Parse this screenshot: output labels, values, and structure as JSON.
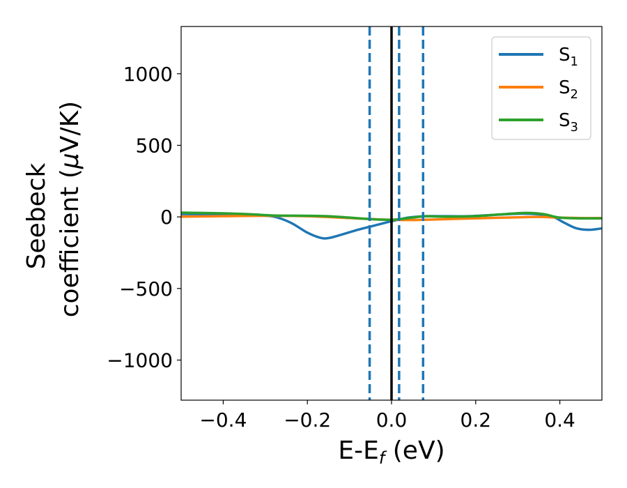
{
  "chart_data": {
    "type": "line",
    "xlabel_main": "E-E",
    "xlabel_sub": "f",
    "xlabel_unit": " (eV)",
    "ylabel_line1": "Seebeck",
    "ylabel_line2_pre": "coefficient  (",
    "ylabel_line2_mu": "μ",
    "ylabel_line2_post": "V/K)",
    "xlim": [
      -0.5,
      0.5
    ],
    "ylim": [
      -1280,
      1330
    ],
    "xticks": [
      {
        "value": -0.4,
        "label": "−0.4"
      },
      {
        "value": -0.2,
        "label": "−0.2"
      },
      {
        "value": 0.0,
        "label": "0.0"
      },
      {
        "value": 0.2,
        "label": "0.2"
      },
      {
        "value": 0.4,
        "label": "0.4"
      }
    ],
    "yticks": [
      {
        "value": 1000,
        "label": "1000"
      },
      {
        "value": 500,
        "label": "500"
      },
      {
        "value": 0,
        "label": "0"
      },
      {
        "value": -500,
        "label": "−500"
      },
      {
        "value": -1000,
        "label": "−1000"
      }
    ],
    "grid": false,
    "legend_position": "top-right",
    "series": [
      {
        "name": "S",
        "name_sub": "1",
        "color": "#1f77b4",
        "x": [
          -0.5,
          -0.4,
          -0.33,
          -0.28,
          -0.24,
          -0.2,
          -0.17,
          -0.15,
          -0.12,
          -0.08,
          -0.04,
          0.0,
          0.04,
          0.08,
          0.12,
          0.18,
          0.25,
          0.3,
          0.34,
          0.38,
          0.41,
          0.44,
          0.47,
          0.5
        ],
        "y": [
          20,
          18,
          12,
          2,
          -40,
          -110,
          -145,
          -148,
          -125,
          -90,
          -60,
          -30,
          -5,
          5,
          5,
          5,
          15,
          22,
          20,
          5,
          -40,
          -80,
          -90,
          -80
        ]
      },
      {
        "name": "S",
        "name_sub": "2",
        "color": "#ff7f0e",
        "x": [
          -0.5,
          -0.4,
          -0.3,
          -0.2,
          -0.1,
          -0.05,
          0.0,
          0.05,
          0.1,
          0.2,
          0.3,
          0.35,
          0.4,
          0.45,
          0.5
        ],
        "y": [
          2,
          5,
          8,
          5,
          -8,
          -15,
          -20,
          -22,
          -18,
          -10,
          -3,
          0,
          -5,
          -8,
          -8
        ]
      },
      {
        "name": "S",
        "name_sub": "3",
        "color": "#2ca02c",
        "x": [
          -0.5,
          -0.4,
          -0.33,
          -0.28,
          -0.2,
          -0.15,
          -0.1,
          -0.05,
          0.0,
          0.05,
          0.08,
          0.12,
          0.2,
          0.26,
          0.32,
          0.36,
          0.4,
          0.45,
          0.5
        ],
        "y": [
          30,
          25,
          18,
          10,
          8,
          5,
          -5,
          -15,
          -20,
          -5,
          5,
          2,
          5,
          18,
          28,
          20,
          -5,
          -10,
          -10
        ]
      }
    ],
    "vlines": [
      {
        "x": 0.0,
        "color": "#000000",
        "style": "solid"
      },
      {
        "x": -0.052,
        "color": "#1f77b4",
        "style": "dashed"
      },
      {
        "x": 0.018,
        "color": "#1f77b4",
        "style": "dashed"
      },
      {
        "x": 0.075,
        "color": "#1f77b4",
        "style": "dashed"
      }
    ]
  }
}
